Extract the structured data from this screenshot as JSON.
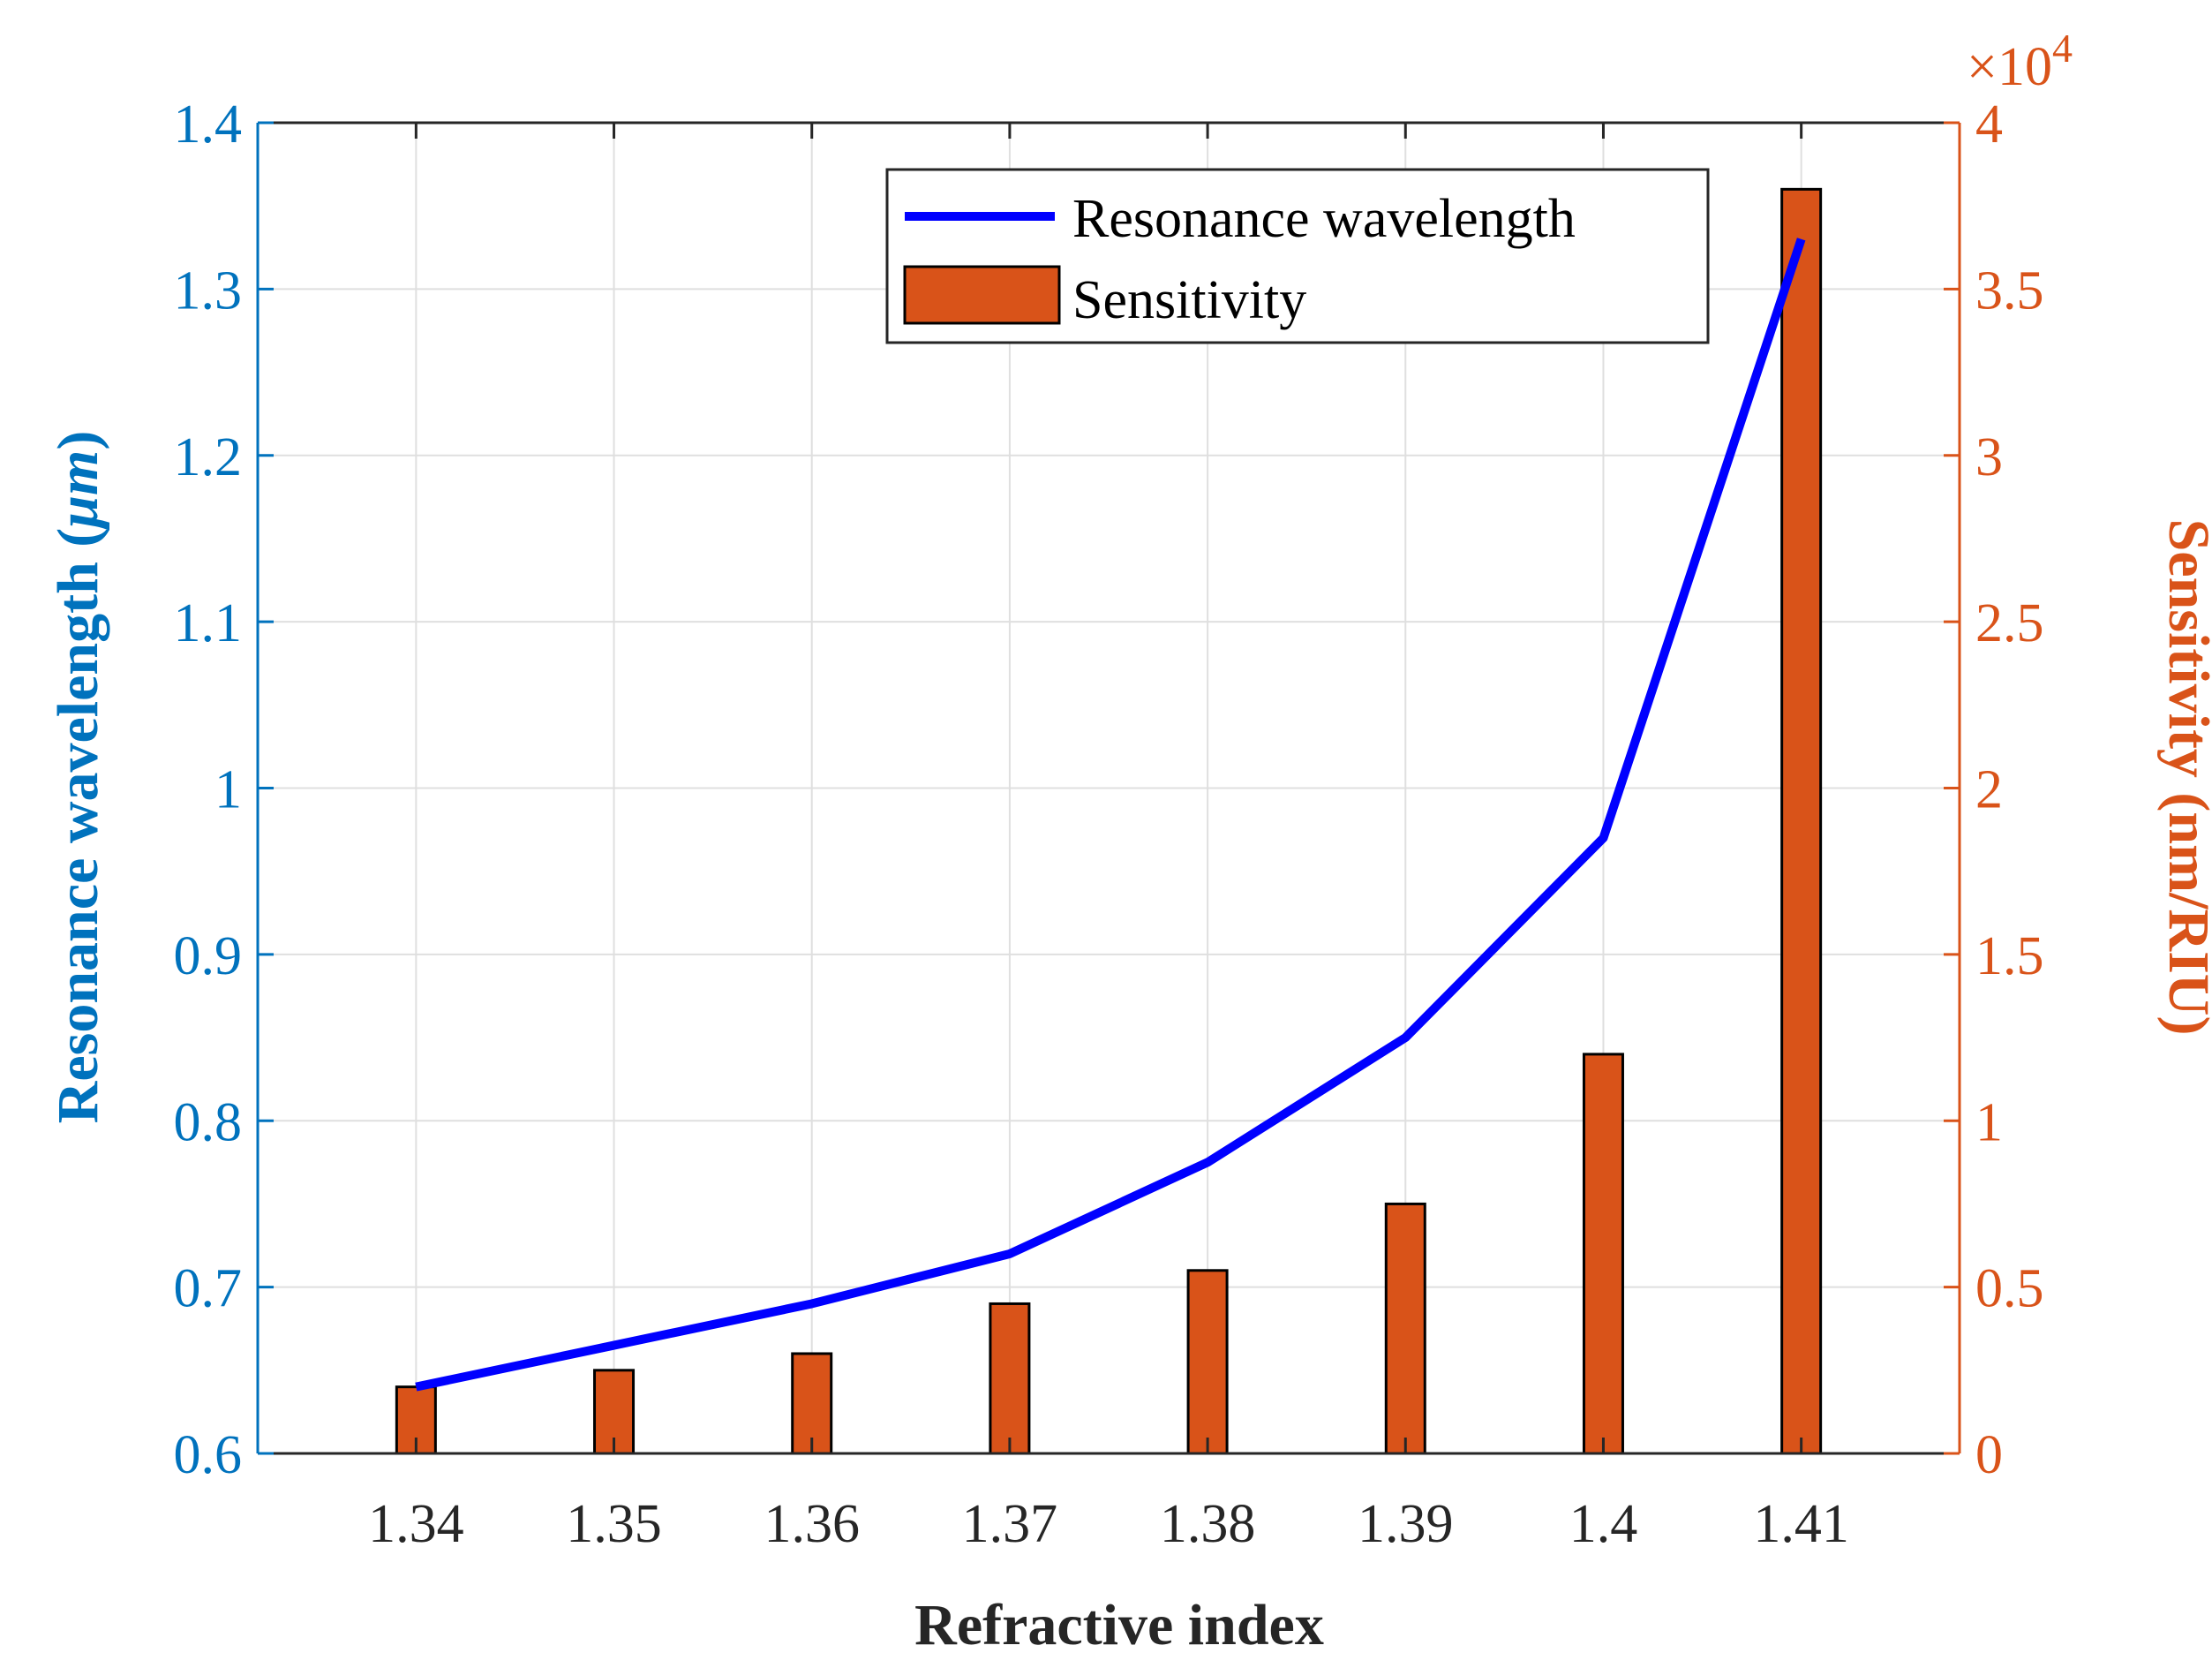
{
  "chart_data": {
    "type": "bar",
    "title": "",
    "xlabel": "Refractive index",
    "ylabel_left_prefix": "Resonance wavelength (",
    "ylabel_left_unit": "μm",
    "ylabel_left_suffix": ")",
    "ylabel_right": "Sensitivity (nm/RIU)",
    "right_axis_exponent_base": "×10",
    "right_axis_exponent_power": "4",
    "categories": [
      "1.34",
      "1.35",
      "1.36",
      "1.37",
      "1.38",
      "1.39",
      "1.4",
      "1.41"
    ],
    "x": [
      1.34,
      1.35,
      1.36,
      1.37,
      1.38,
      1.39,
      1.4,
      1.41
    ],
    "xlim": [
      1.332,
      1.418
    ],
    "ylim_left": [
      0.6,
      1.4
    ],
    "ylim_right": [
      0,
      40000
    ],
    "left_ticks": [
      0.6,
      0.7,
      0.8,
      0.9,
      1.0,
      1.1,
      1.2,
      1.3,
      1.4
    ],
    "left_tick_labels": [
      "0.6",
      "0.7",
      "0.8",
      "0.9",
      "1",
      "1.1",
      "1.2",
      "1.3",
      "1.4"
    ],
    "right_ticks": [
      0,
      5000,
      10000,
      15000,
      20000,
      25000,
      30000,
      35000,
      40000
    ],
    "right_tick_labels": [
      "0",
      "0.5",
      "1",
      "1.5",
      "2",
      "2.5",
      "3",
      "3.5",
      "4"
    ],
    "grid": true,
    "legend_position": "top-right",
    "series": [
      {
        "name": "Resonance wavelength",
        "type": "line",
        "axis": "left",
        "color": "#0000FF",
        "values": [
          0.64,
          0.665,
          0.69,
          0.72,
          0.775,
          0.85,
          0.97,
          1.33
        ]
      },
      {
        "name": "Sensitivity",
        "type": "bar",
        "axis": "right",
        "color": "#D95319",
        "values": [
          2000,
          2500,
          3000,
          4500,
          5500,
          7500,
          12000,
          38000
        ]
      }
    ],
    "colors": {
      "left_axis": "#0072BD",
      "right_axis": "#D95319",
      "x_axis": "#262626",
      "grid": "#DFDFDF"
    }
  }
}
